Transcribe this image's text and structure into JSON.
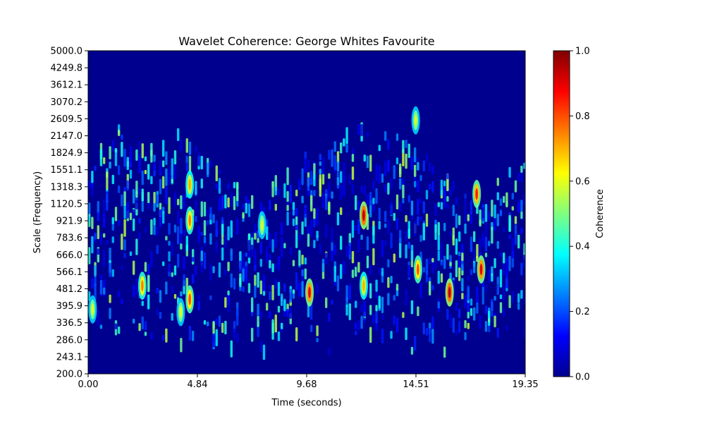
{
  "chart_data": {
    "type": "heatmap",
    "title": "Wavelet Coherence: George Whites Favourite",
    "xlabel": "Time (seconds)",
    "ylabel": "Scale (Frequency)",
    "xlim": [
      0,
      19.35
    ],
    "x_ticks": [
      "0.00",
      "4.84",
      "9.68",
      "14.51",
      "19.35"
    ],
    "y_ticks": [
      "200.0",
      "243.1",
      "286.0",
      "336.5",
      "395.9",
      "481.2",
      "566.1",
      "666.0",
      "783.6",
      "921.9",
      "1120.5",
      "1318.3",
      "1551.1",
      "1824.9",
      "2147.0",
      "2609.5",
      "3070.2",
      "3612.1",
      "4249.8",
      "5000.0"
    ],
    "ylim": [
      200.0,
      5000.0
    ],
    "y_scale": "log",
    "colorbar": {
      "label": "Coherence",
      "range": [
        0.0,
        1.0
      ],
      "ticks": [
        "0.0",
        "0.2",
        "0.4",
        "0.6",
        "0.8",
        "1.0"
      ],
      "colormap": "jet"
    },
    "hotspots": [
      {
        "time": 4.5,
        "scale": 1318.3,
        "coherence": 0.7
      },
      {
        "time": 4.5,
        "scale": 921.9,
        "coherence": 0.75
      },
      {
        "time": 2.4,
        "scale": 481.2,
        "coherence": 0.75
      },
      {
        "time": 4.5,
        "scale": 420.0,
        "coherence": 0.8
      },
      {
        "time": 4.1,
        "scale": 370.0,
        "coherence": 0.6
      },
      {
        "time": 9.8,
        "scale": 450.0,
        "coherence": 0.9
      },
      {
        "time": 12.2,
        "scale": 970.0,
        "coherence": 0.95
      },
      {
        "time": 12.2,
        "scale": 481.2,
        "coherence": 0.7
      },
      {
        "time": 14.6,
        "scale": 566.1,
        "coherence": 0.8
      },
      {
        "time": 16.0,
        "scale": 450.0,
        "coherence": 0.95
      },
      {
        "time": 17.4,
        "scale": 566.1,
        "coherence": 0.9
      },
      {
        "time": 17.2,
        "scale": 1200.0,
        "coherence": 0.85
      },
      {
        "time": 14.5,
        "scale": 2500.0,
        "coherence": 0.6
      },
      {
        "time": 0.2,
        "scale": 380.0,
        "coherence": 0.6
      },
      {
        "time": 7.7,
        "scale": 880.0,
        "coherence": 0.6
      }
    ]
  }
}
